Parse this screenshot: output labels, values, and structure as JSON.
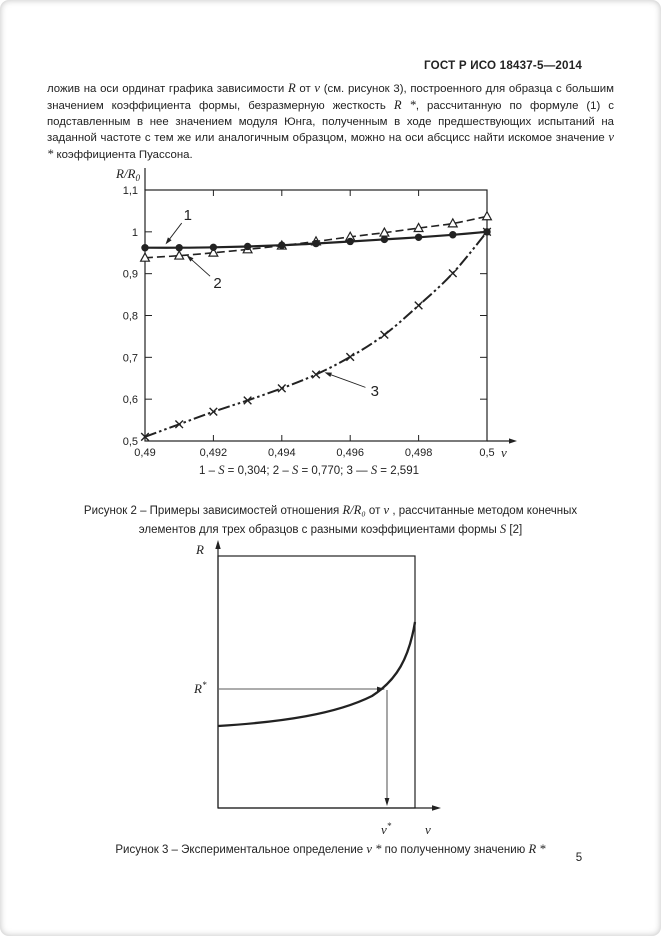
{
  "colors": {
    "ink": "#222222",
    "paper": "#ffffff"
  },
  "page": {
    "header": "ГОСТ Р ИСО 18437-5—2014",
    "page_number": "5"
  },
  "paragraph": [
    {
      "t": "ложив на оси ординат графика зависимости "
    },
    {
      "t": "R",
      "m": true
    },
    {
      "t": " от "
    },
    {
      "t": "ν",
      "m": true
    },
    {
      "t": " (см. рисунок 3), построенного для образца с большим значением коэффициента формы, безразмерную жесткость "
    },
    {
      "t": "R *",
      "m": true
    },
    {
      "t": ", рассчитанную по формуле (1) с подставленным в нее значением модуля Юнга, полученным в ходе предшествующих испытаний на заданной частоте с тем же или аналогичным образцом, можно на оси абсцисс найти искомое значение "
    },
    {
      "t": "ν *",
      "m": true
    },
    {
      "t": " коэффициента Пуассона."
    }
  ],
  "chart_data": {
    "type": "line",
    "title": "",
    "xlabel": "ν",
    "ylabel": "R/R₀",
    "y_label_parts": {
      "main": "R/R",
      "sub": "0"
    },
    "xlim": [
      0.49,
      0.5
    ],
    "ylim": [
      0.5,
      1.1
    ],
    "grid": false,
    "legend_position": "text-line-below",
    "x_ticks": [
      {
        "v": 0.49,
        "label": "0,49"
      },
      {
        "v": 0.492,
        "label": "0,492"
      },
      {
        "v": 0.494,
        "label": "0,494"
      },
      {
        "v": 0.496,
        "label": "0,496"
      },
      {
        "v": 0.498,
        "label": "0,498"
      },
      {
        "v": 0.5,
        "label": "0,5"
      }
    ],
    "y_ticks": [
      {
        "v": 1.1,
        "label": "1,1"
      },
      {
        "v": 1.0,
        "label": "1"
      },
      {
        "v": 0.9,
        "label": "0,9"
      },
      {
        "v": 0.8,
        "label": "0,8"
      },
      {
        "v": 0.7,
        "label": "0,7"
      },
      {
        "v": 0.6,
        "label": "0,6"
      },
      {
        "v": 0.5,
        "label": "0,5"
      }
    ],
    "x": [
      0.49,
      0.491,
      0.492,
      0.493,
      0.494,
      0.495,
      0.496,
      0.497,
      0.498,
      0.499,
      0.5
    ],
    "series": [
      {
        "name": "1",
        "shape_factor": "S = 0,304",
        "style": "solid",
        "marker": "circle",
        "y": [
          0.962,
          0.962,
          0.963,
          0.965,
          0.968,
          0.972,
          0.977,
          0.982,
          0.987,
          0.993,
          1.0
        ]
      },
      {
        "name": "2",
        "shape_factor": "S = 0,770",
        "style": "dashed",
        "marker": "triangle",
        "y": [
          0.938,
          0.943,
          0.95,
          0.958,
          0.967,
          0.977,
          0.988,
          0.998,
          1.009,
          1.02,
          1.037
        ]
      },
      {
        "name": "3",
        "shape_factor": "S = 2,591",
        "style": "dashdotdot",
        "marker": "x",
        "y": [
          0.51,
          0.54,
          0.57,
          0.597,
          0.626,
          0.659,
          0.701,
          0.754,
          0.824,
          0.901,
          1.0
        ]
      }
    ],
    "annotations": [
      {
        "label": "1",
        "tx": 0.49125,
        "ty": 1.04,
        "ax": 0.4906,
        "ay": 0.97
      },
      {
        "label": "2",
        "tx": 0.49212,
        "ty": 0.878,
        "ax": 0.49122,
        "ay": 0.944
      },
      {
        "label": "3",
        "tx": 0.49672,
        "ty": 0.62,
        "ax": 0.49525,
        "ay": 0.664
      }
    ]
  },
  "figure2": {
    "legend_line": [
      {
        "t": "1 – "
      },
      {
        "t": "S",
        "m": true
      },
      {
        "t": " = 0,304; 2 – "
      },
      {
        "t": "S",
        "m": true
      },
      {
        "t": " = 0,770; 3 — "
      },
      {
        "t": "S",
        "m": true
      },
      {
        "t": " = 2,591"
      }
    ],
    "caption": [
      {
        "t": "Рисунок 2 – Примеры зависимостей отношения "
      },
      {
        "t": "R/R₀",
        "m": true
      },
      {
        "t": " от "
      },
      {
        "t": "ν",
        "m": true
      },
      {
        "t": " , рассчитанные методом конечных элементов для трех образцов с разными коэффициентами формы "
      },
      {
        "t": "S",
        "m": true
      },
      {
        "t": " [2]"
      }
    ]
  },
  "figure3": {
    "y_axis_label": "R",
    "r_star_label": "R",
    "r_star_sup": "*",
    "x_star_label": "ν",
    "x_star_sup": "*",
    "x_axis_label": "ν",
    "caption": [
      {
        "t": "Рисунок 3 – Экспериментальное определение "
      },
      {
        "t": "ν *",
        "m": true
      },
      {
        "t": " по полученному значению "
      },
      {
        "t": "R *",
        "m": true
      }
    ]
  }
}
